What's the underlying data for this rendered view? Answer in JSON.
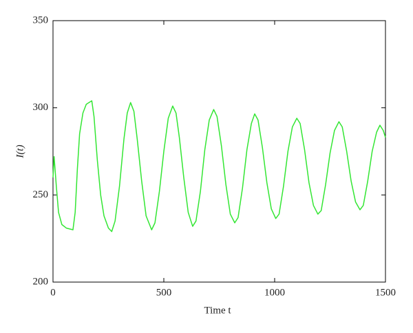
{
  "chart_data": {
    "type": "line",
    "x_label": "Time t",
    "y_label": "I(t)",
    "xlim": [
      0,
      1500
    ],
    "ylim": [
      200,
      350
    ],
    "xticks": [
      0,
      500,
      1000,
      1500
    ],
    "yticks": [
      200,
      250,
      300,
      350
    ],
    "series": [
      {
        "color": "#33e633",
        "x": [
          0,
          5,
          15,
          25,
          40,
          60,
          90,
          100,
          110,
          120,
          135,
          150,
          175,
          185,
          200,
          215,
          230,
          250,
          265,
          280,
          300,
          320,
          335,
          350,
          365,
          380,
          400,
          420,
          445,
          460,
          480,
          500,
          520,
          540,
          555,
          570,
          590,
          610,
          630,
          645,
          665,
          685,
          705,
          725,
          740,
          760,
          780,
          800,
          820,
          835,
          855,
          875,
          895,
          910,
          925,
          945,
          965,
          985,
          1005,
          1020,
          1040,
          1060,
          1080,
          1100,
          1115,
          1135,
          1155,
          1175,
          1195,
          1210,
          1230,
          1250,
          1270,
          1290,
          1305,
          1325,
          1345,
          1365,
          1385,
          1400,
          1420,
          1440,
          1460,
          1475,
          1490,
          1500
        ],
        "values": [
          260,
          272,
          255,
          240,
          233,
          231,
          230,
          240,
          265,
          285,
          297,
          302,
          304,
          295,
          270,
          250,
          238,
          231,
          229,
          235,
          255,
          282,
          297,
          303,
          298,
          282,
          258,
          238,
          230,
          234,
          252,
          275,
          294,
          301,
          297,
          283,
          260,
          240,
          232,
          235,
          252,
          276,
          293,
          299,
          295,
          278,
          256,
          239,
          234,
          237,
          254,
          276,
          291,
          296.5,
          293,
          277,
          257,
          242,
          236.5,
          239,
          255,
          275,
          289,
          294,
          291,
          276,
          257,
          244,
          239,
          241,
          256,
          274,
          287,
          292,
          289,
          275,
          258,
          246,
          241.5,
          244,
          258,
          275,
          286,
          290,
          287,
          283
        ]
      }
    ]
  }
}
